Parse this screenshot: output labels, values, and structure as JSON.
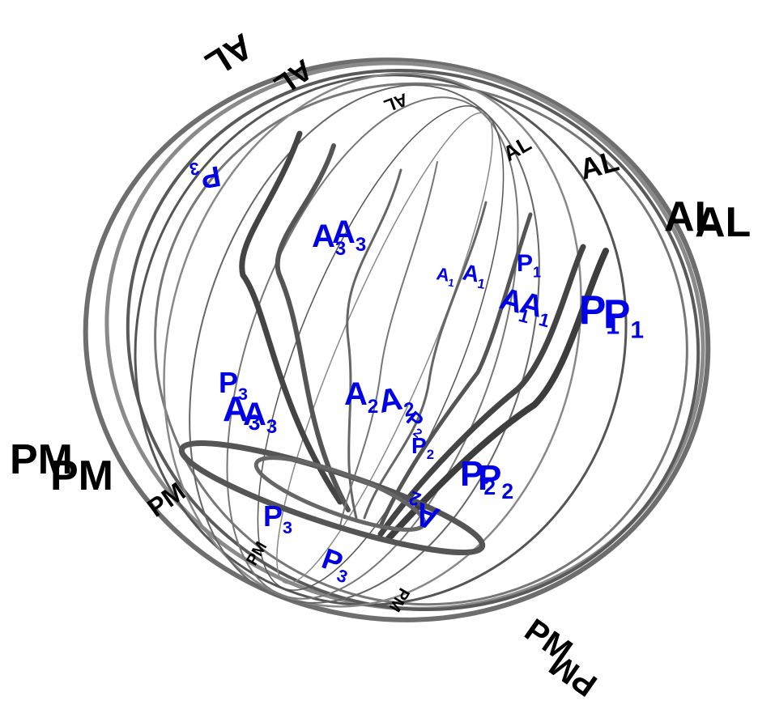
{
  "black_labels": {
    "color": "#000000",
    "items": [
      {
        "main": "AL"
      },
      {
        "main": "AL"
      },
      {
        "main": "AL"
      },
      {
        "main": "AL"
      },
      {
        "main": "AL"
      },
      {
        "main": "AL"
      },
      {
        "main": "AL"
      },
      {
        "main": "PM"
      },
      {
        "main": "PM"
      },
      {
        "main": "PM"
      },
      {
        "main": "PM"
      },
      {
        "main": "PM"
      },
      {
        "main": "PM"
      },
      {
        "main": "PM"
      }
    ]
  },
  "blue_labels": {
    "color": "#0000e6",
    "items": [
      {
        "main": "P",
        "sub": "1"
      },
      {
        "main": "P",
        "sub": "1"
      },
      {
        "main": "A",
        "sub": "1"
      },
      {
        "main": "A",
        "sub": "1"
      },
      {
        "main": "P",
        "sub": "1"
      },
      {
        "main": "A",
        "sub": "1"
      },
      {
        "main": "A",
        "sub": "1"
      },
      {
        "main": "P",
        "sub": "2"
      },
      {
        "main": "P",
        "sub": "2"
      },
      {
        "main": "A",
        "sub": "2"
      },
      {
        "main": "P",
        "sub": "2"
      },
      {
        "main": "A",
        "sub": "2"
      },
      {
        "main": "A",
        "sub": "2"
      },
      {
        "main": "P",
        "sub": "2"
      },
      {
        "main": "A",
        "sub": "3"
      },
      {
        "main": "A",
        "sub": "3"
      },
      {
        "main": "P",
        "sub": "3"
      },
      {
        "main": "P",
        "sub": "3"
      },
      {
        "main": "A",
        "sub": "3"
      },
      {
        "main": "A",
        "sub": "3"
      },
      {
        "main": "P",
        "sub": "3"
      },
      {
        "main": "P",
        "sub": "3"
      }
    ]
  }
}
